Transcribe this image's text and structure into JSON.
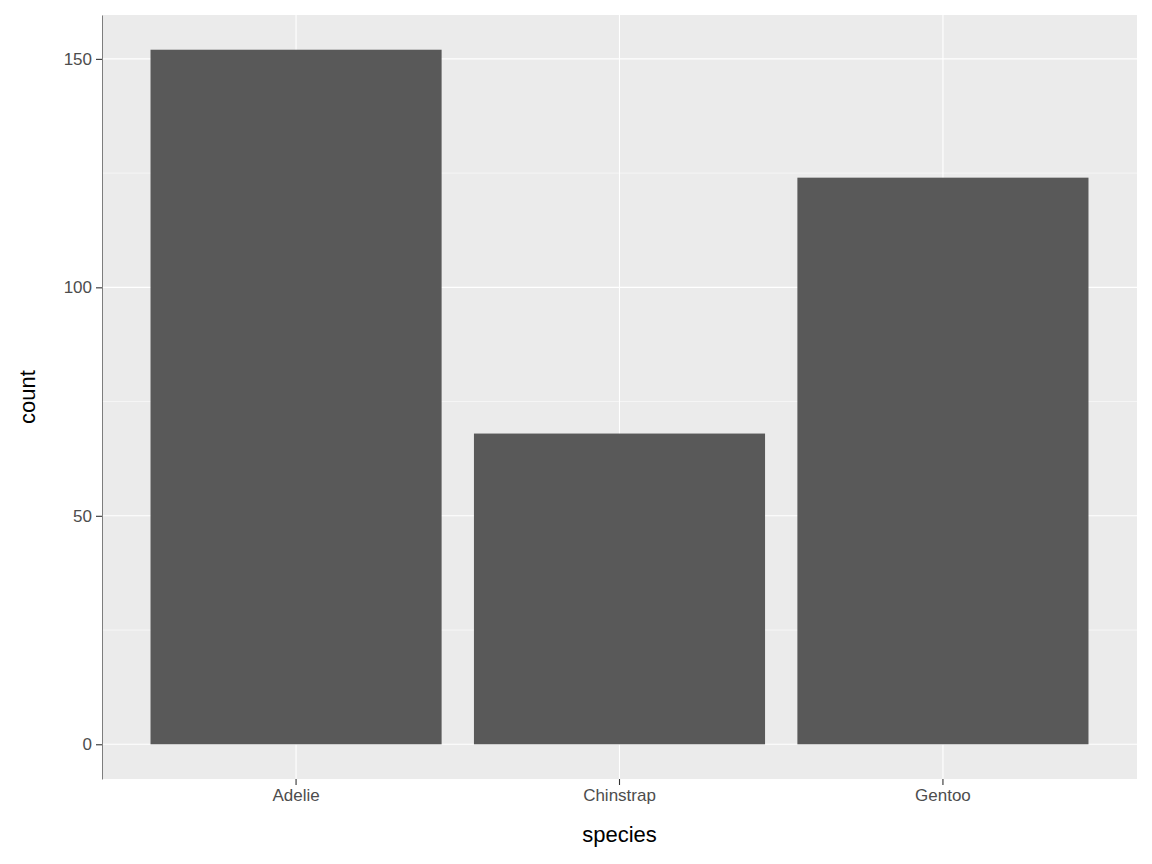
{
  "chart_data": {
    "type": "bar",
    "x_label": "species",
    "y_label": "count",
    "categories": [
      "Adelie",
      "Chinstrap",
      "Gentoo"
    ],
    "values": [
      152,
      68,
      124
    ],
    "color": "#595959",
    "ylim": [
      -7.6,
      159.6
    ],
    "yticks": [
      0,
      50,
      100,
      150
    ],
    "grid": true
  }
}
